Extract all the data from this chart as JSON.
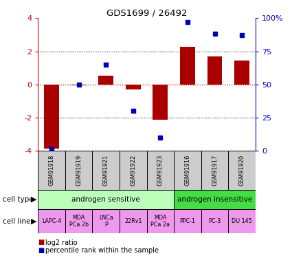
{
  "title": "GDS1699 / 26492",
  "samples": [
    "GSM91918",
    "GSM91919",
    "GSM91921",
    "GSM91922",
    "GSM91923",
    "GSM91916",
    "GSM91917",
    "GSM91920"
  ],
  "log2_ratio": [
    -3.85,
    -0.05,
    0.55,
    -0.3,
    -2.1,
    2.25,
    1.7,
    1.45
  ],
  "percentile_rank": [
    2,
    50,
    65,
    30,
    10,
    97,
    88,
    87
  ],
  "ylim_left": [
    -4,
    4
  ],
  "ylim_right": [
    0,
    100
  ],
  "yticks_left": [
    -4,
    -2,
    0,
    2,
    4
  ],
  "ytick_labels_left": [
    "-4",
    "-2",
    "0",
    "2",
    "4"
  ],
  "yticks_right": [
    0,
    25,
    50,
    75,
    100
  ],
  "ytick_labels_right": [
    "0",
    "25",
    "50",
    "75",
    "100%"
  ],
  "cell_type_groups": [
    {
      "label": "androgen sensitive",
      "start": 0,
      "end": 5,
      "color": "#bbffbb"
    },
    {
      "label": "androgen insensitive",
      "start": 5,
      "end": 8,
      "color": "#44dd44"
    }
  ],
  "cell_lines": [
    "LAPC-4",
    "MDA\nPCa 2b",
    "LNCa\nP",
    "22Rv1",
    "MDA\nPCa 2a",
    "PPC-1",
    "PC-3",
    "DU 145"
  ],
  "cell_line_color": "#ee99ee",
  "bar_color": "#aa0000",
  "dot_color": "#0000bb",
  "zero_line_color": "#cc0000",
  "sample_box_color": "#cccccc",
  "left_tick_color": "#cc0000",
  "right_tick_color": "#0000cc",
  "sep_col": 5,
  "bar_width": 0.55
}
